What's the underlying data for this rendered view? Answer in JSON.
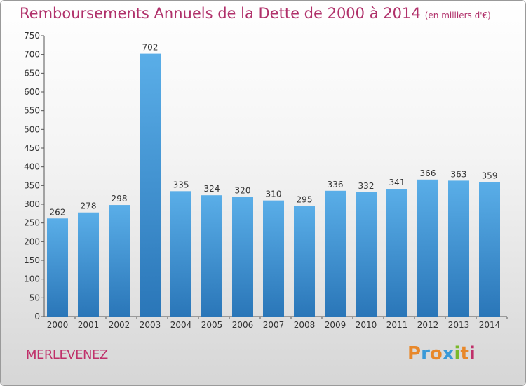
{
  "chart_data": {
    "type": "bar",
    "title": "Remboursements Annuels de la Dette de 2000 à 2014",
    "subtitle": "(en milliers d'€)",
    "categories": [
      "2000",
      "2001",
      "2002",
      "2003",
      "2004",
      "2005",
      "2006",
      "2007",
      "2008",
      "2009",
      "2010",
      "2011",
      "2012",
      "2013",
      "2014"
    ],
    "values": [
      262,
      278,
      298,
      702,
      335,
      324,
      320,
      310,
      295,
      336,
      332,
      341,
      366,
      363,
      359
    ],
    "ylim": [
      0,
      750
    ],
    "ytick_step": 50,
    "grid": false,
    "bar_color_top": "#5aaee8",
    "bar_color_bottom": "#2a76b8"
  },
  "footer": {
    "commune": "MERLEVENEZ",
    "brand_letters": [
      "P",
      "r",
      "o",
      "x",
      "i",
      "t",
      "i"
    ],
    "brand_colors": [
      "#e8882a",
      "#3a9ad8",
      "#e8882a",
      "#3a9ad8",
      "#7ab82a",
      "#e8882a",
      "#c0306a"
    ]
  }
}
